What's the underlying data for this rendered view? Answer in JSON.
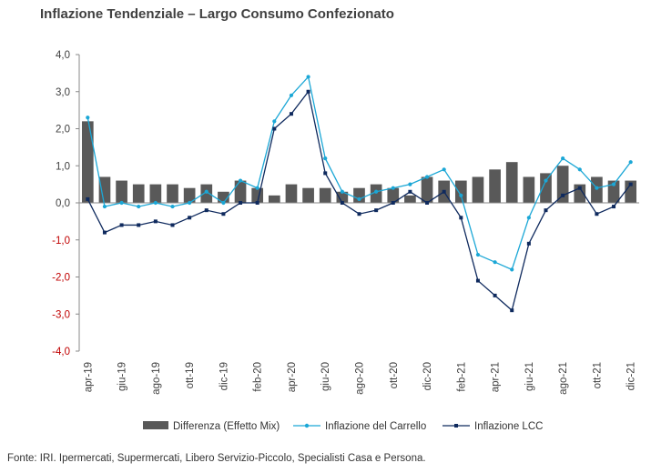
{
  "title": "Inflazione Tendenziale – Largo Consumo Confezionato",
  "source": "Fonte: IRI. Ipermercati, Supermercati, Libero Servizio-Piccolo, Specialisti Casa e Persona.",
  "colors": {
    "bar": "#595959",
    "carrello": "#1ba7d6",
    "lcc": "#0f2a5e",
    "positive_label": "#404040",
    "negative_label": "#c00000",
    "axis": "#888888"
  },
  "chart_data": {
    "type": "bar+line",
    "title": "Inflazione Tendenziale – Largo Consumo Confezionato",
    "ylim": [
      -4.0,
      4.0
    ],
    "yticks": [
      "4,0",
      "3,0",
      "2,0",
      "1,0",
      "0,0",
      "-1,0",
      "-2,0",
      "-3,0",
      "-4,0"
    ],
    "ytick_values": [
      4,
      3,
      2,
      1,
      0,
      -1,
      -2,
      -3,
      -4
    ],
    "categories": [
      "apr-19",
      "mag-19",
      "giu-19",
      "lug-19",
      "ago-19",
      "set-19",
      "ott-19",
      "nov-19",
      "dic-19",
      "gen-20",
      "feb-20",
      "mar-20",
      "apr-20",
      "mag-20",
      "giu-20",
      "lug-20",
      "ago-20",
      "set-20",
      "ott-20",
      "nov-20",
      "dic-20",
      "gen-21",
      "feb-21",
      "mar-21",
      "apr-21",
      "mag-21",
      "giu-21",
      "lug-21",
      "ago-21",
      "set-21",
      "ott-21",
      "nov-21",
      "dic-21"
    ],
    "visible_xticks": [
      "apr-19",
      "giu-19",
      "ago-19",
      "ott-19",
      "dic-19",
      "feb-20",
      "apr-20",
      "giu-20",
      "ago-20",
      "ott-20",
      "dic-20",
      "feb-21",
      "apr-21",
      "giu-21",
      "ago-21",
      "ott-21",
      "dic-21"
    ],
    "series": [
      {
        "name": "Differenza (Effetto Mix)",
        "type": "bar",
        "values": [
          2.2,
          0.7,
          0.6,
          0.5,
          0.5,
          0.5,
          0.4,
          0.5,
          0.3,
          0.6,
          0.4,
          0.2,
          0.5,
          0.4,
          0.4,
          0.3,
          0.4,
          0.5,
          0.4,
          0.2,
          0.7,
          0.6,
          0.6,
          0.7,
          0.9,
          1.1,
          0.7,
          0.8,
          1.0,
          0.5,
          0.7,
          0.6,
          0.6
        ]
      },
      {
        "name": "Inflazione del Carrello",
        "type": "line",
        "values": [
          2.3,
          -0.1,
          0.0,
          -0.1,
          0.0,
          -0.1,
          0.0,
          0.3,
          0.0,
          0.6,
          0.4,
          2.2,
          2.9,
          3.4,
          1.2,
          0.3,
          0.1,
          0.3,
          0.4,
          0.5,
          0.7,
          0.9,
          0.2,
          -1.4,
          -1.6,
          -1.8,
          -0.4,
          0.6,
          1.2,
          0.9,
          0.4,
          0.5,
          1.1
        ]
      },
      {
        "name": "Inflazione LCC",
        "type": "line",
        "values": [
          0.1,
          -0.8,
          -0.6,
          -0.6,
          -0.5,
          -0.6,
          -0.4,
          -0.2,
          -0.3,
          0.0,
          0.0,
          2.0,
          2.4,
          3.0,
          0.8,
          0.0,
          -0.3,
          -0.2,
          0.0,
          0.3,
          0.0,
          0.3,
          -0.4,
          -2.1,
          -2.5,
          -2.9,
          -1.1,
          -0.2,
          0.2,
          0.4,
          -0.3,
          -0.1,
          0.5
        ]
      }
    ],
    "legend_position": "bottom",
    "grid": false
  }
}
